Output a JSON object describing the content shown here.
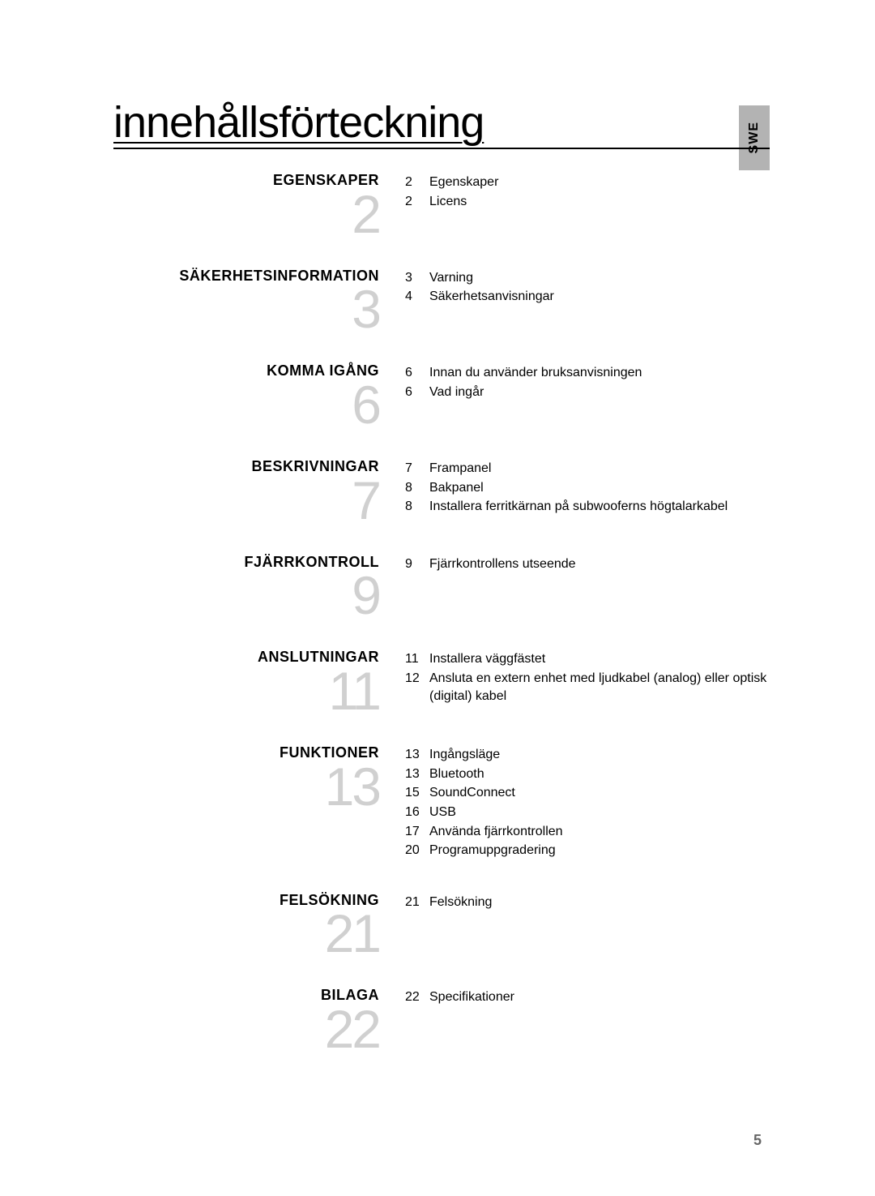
{
  "lang_tab": "SWE",
  "title": "innehållsförteckning",
  "page_number": "5",
  "sections": [
    {
      "heading": "EGENSKAPER",
      "big_num": "2",
      "entries": [
        {
          "page": "2",
          "label": "Egenskaper"
        },
        {
          "page": "2",
          "label": "Licens"
        }
      ]
    },
    {
      "heading": "SÄKERHETSINFORMATION",
      "big_num": "3",
      "entries": [
        {
          "page": "3",
          "label": "Varning"
        },
        {
          "page": "4",
          "label": "Säkerhetsanvisningar"
        }
      ]
    },
    {
      "heading": "KOMMA IGÅNG",
      "big_num": "6",
      "entries": [
        {
          "page": "6",
          "label": "Innan du använder bruksanvisningen"
        },
        {
          "page": "6",
          "label": "Vad ingår"
        }
      ]
    },
    {
      "heading": "BESKRIVNINGAR",
      "big_num": "7",
      "entries": [
        {
          "page": "7",
          "label": "Frampanel"
        },
        {
          "page": "8",
          "label": "Bakpanel"
        },
        {
          "page": "8",
          "label": "Installera ferritkärnan på subwooferns högtalarkabel"
        }
      ]
    },
    {
      "heading": "FJÄRRKONTROLL",
      "big_num": "9",
      "entries": [
        {
          "page": "9",
          "label": "Fjärrkontrollens utseende"
        }
      ]
    },
    {
      "heading": "ANSLUTNINGAR",
      "big_num": "11",
      "entries": [
        {
          "page": "11",
          "label": "Installera väggfästet"
        },
        {
          "page": "12",
          "label": "Ansluta en extern enhet med ljudkabel (analog) eller optisk (digital) kabel"
        }
      ]
    },
    {
      "heading": "FUNKTIONER",
      "big_num": "13",
      "entries": [
        {
          "page": "13",
          "label": "Ingångsläge"
        },
        {
          "page": "13",
          "label": "Bluetooth"
        },
        {
          "page": "15",
          "label": "SoundConnect"
        },
        {
          "page": "16",
          "label": "USB"
        },
        {
          "page": "17",
          "label": "Använda fjärrkontrollen"
        },
        {
          "page": "20",
          "label": "Programuppgradering"
        }
      ]
    },
    {
      "heading": "FELSÖKNING",
      "big_num": "21",
      "entries": [
        {
          "page": "21",
          "label": "Felsökning"
        }
      ]
    },
    {
      "heading": "BILAGA",
      "big_num": "22",
      "entries": [
        {
          "page": "22",
          "label": "Specifikationer"
        }
      ]
    }
  ]
}
